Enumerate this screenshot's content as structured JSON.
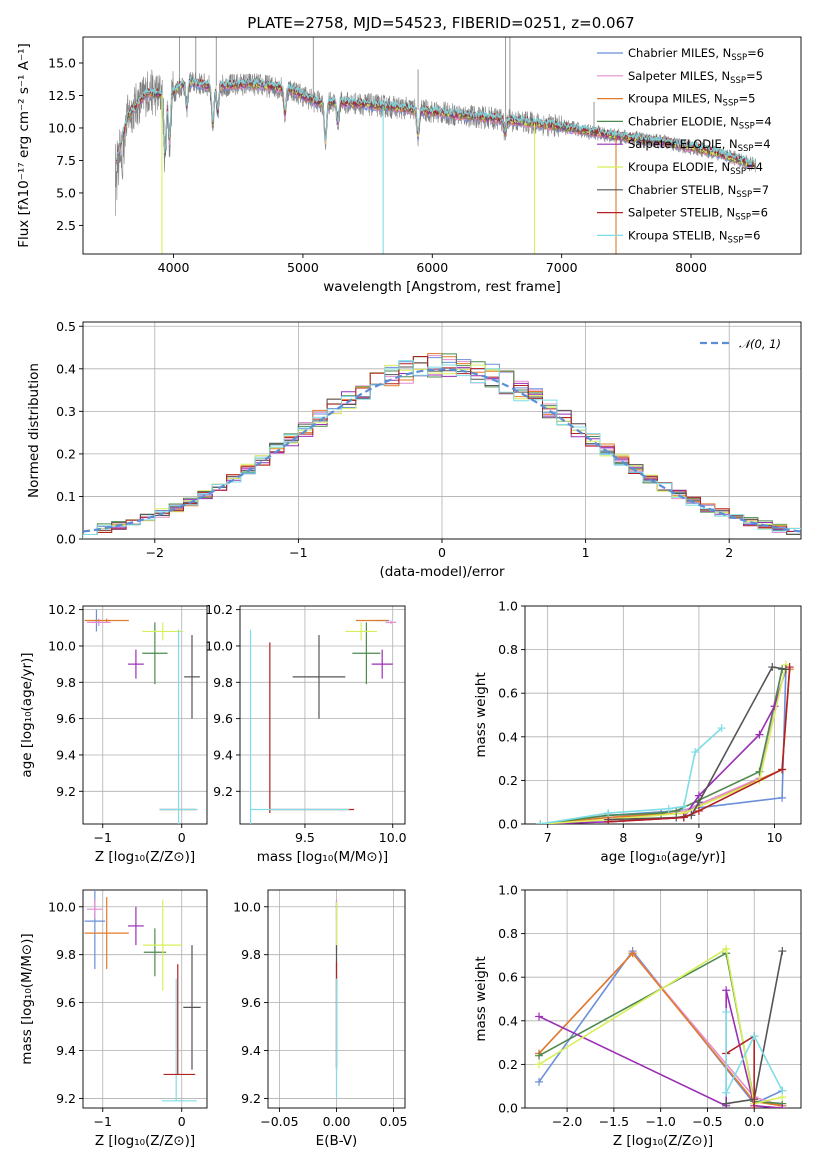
{
  "title": "PLATE=2758, MJD=54523, FIBERID=0251, z=0.067",
  "colors": {
    "Chabrier MILES": "#6b8fd9",
    "Salpeter MILES": "#e38fd1",
    "Kroupa MILES": "#e07b2a",
    "Chabrier ELODIE": "#4e8a4e",
    "Salpeter ELODIE": "#9b2fb5",
    "Kroupa ELODIE": "#d7ef5a",
    "Chabrier STELIB": "#555555",
    "Salpeter STELIB": "#b22222",
    "Kroupa STELIB": "#7fdde6",
    "data": "#808080",
    "normal": "#5a8fd8"
  },
  "chart_data": [
    {
      "id": "spectrum",
      "type": "line",
      "xlabel": "wavelength [Angstrom, rest frame]",
      "ylabel": "Flux [fλ10⁻¹⁷ erg cm⁻² s⁻¹ A⁻¹]",
      "xlim": [
        3300,
        8850
      ],
      "ylim": [
        0.3,
        17.0
      ],
      "xticks": [
        4000,
        5000,
        6000,
        7000,
        8000
      ],
      "yticks": [
        2.5,
        5.0,
        7.5,
        10.0,
        12.5,
        15.0
      ],
      "ytick_labels": [
        "2.5",
        "5.0",
        "7.5",
        "10.0",
        "12.5",
        "15.0"
      ],
      "legend_position": "top-right",
      "legend": [
        {
          "model": "Chabrier MILES",
          "nssp": "6"
        },
        {
          "model": "Salpeter MILES",
          "nssp": "5"
        },
        {
          "model": "Kroupa MILES",
          "nssp": "5"
        },
        {
          "model": "Chabrier ELODIE",
          "nssp": "4"
        },
        {
          "model": "Salpeter ELODIE",
          "nssp": "4"
        },
        {
          "model": "Kroupa ELODIE",
          "nssp": "4"
        },
        {
          "model": "Chabrier STELIB",
          "nssp": "7"
        },
        {
          "model": "Salpeter STELIB",
          "nssp": "6"
        },
        {
          "model": "Kroupa STELIB",
          "nssp": "6"
        }
      ],
      "continuum": {
        "x": [
          3550,
          3650,
          3800,
          3950,
          4100,
          4300,
          4600,
          4900,
          5100,
          5400,
          5800,
          6200,
          6600,
          7000,
          7400,
          7800,
          8200,
          8500
        ],
        "y": [
          7.2,
          11.0,
          12.8,
          12.4,
          13.6,
          13.2,
          13.4,
          13.0,
          12.0,
          11.9,
          11.5,
          11.0,
          10.6,
          10.1,
          9.4,
          8.9,
          8.1,
          7.1
        ]
      },
      "absorption_lines": [
        {
          "x": 3934,
          "depth": 4.5
        },
        {
          "x": 3969,
          "depth": 3.5
        },
        {
          "x": 4102,
          "depth": 2.0
        },
        {
          "x": 4304,
          "depth": 3.0
        },
        {
          "x": 4341,
          "depth": 2.0
        },
        {
          "x": 4861,
          "depth": 2.0
        },
        {
          "x": 5175,
          "depth": 3.0
        },
        {
          "x": 5270,
          "depth": 1.5
        },
        {
          "x": 5890,
          "depth": 2.0
        },
        {
          "x": 6563,
          "depth": 1.0
        },
        {
          "x": 8542,
          "depth": 1.5
        }
      ],
      "model_dropouts": [
        {
          "x": 3910,
          "series": "Kroupa ELODIE"
        },
        {
          "x": 5620,
          "series": "Kroupa STELIB"
        },
        {
          "x": 6790,
          "series": "Kroupa ELODIE"
        },
        {
          "x": 7420,
          "series": "Kroupa MILES"
        }
      ],
      "data_spikes": [
        {
          "x": 4045,
          "y": 17.0
        },
        {
          "x": 4172,
          "y": 17.0
        },
        {
          "x": 4330,
          "y": 17.0
        },
        {
          "x": 5080,
          "y": 17.0
        },
        {
          "x": 5890,
          "y": 14.5
        },
        {
          "x": 6567,
          "y": 17.0
        },
        {
          "x": 6600,
          "y": 17.0
        },
        {
          "x": 7250,
          "y": 12.0
        }
      ]
    },
    {
      "id": "residuals",
      "type": "histogram",
      "xlabel": "(data-model)/error",
      "ylabel": "Normed distribution",
      "xlim": [
        -2.5,
        2.5
      ],
      "ylim": [
        0,
        0.51
      ],
      "xticks": [
        -2,
        -1,
        0,
        1,
        2
      ],
      "xtick_labels": [
        "−2",
        "−1",
        "0",
        "1",
        "2"
      ],
      "yticks": [
        0.0,
        0.1,
        0.2,
        0.3,
        0.4,
        0.5
      ],
      "ytick_labels": [
        "0.0",
        "0.1",
        "0.2",
        "0.3",
        "0.4",
        "0.5"
      ],
      "bins": 50,
      "legend_position": "top-right",
      "legend_label": "𝒩(0, 1)"
    },
    {
      "id": "age-vs-Z",
      "type": "scatter-errorbar",
      "xlabel": "Z [log₁₀(Z/Z⊙)]",
      "ylabel": "age  [log₁₀(age/yr)]",
      "xlim": [
        -1.25,
        0.32
      ],
      "ylim": [
        9.02,
        10.22
      ],
      "xticks": [
        -1,
        0
      ],
      "xtick_labels": [
        "−1",
        "0"
      ],
      "yticks": [
        9.2,
        9.4,
        9.6,
        9.8,
        10.0,
        10.2
      ],
      "ytick_labels": [
        "9.2",
        "9.4",
        "9.6",
        "9.8",
        "10.0",
        "10.2"
      ],
      "points": [
        {
          "series": "Chabrier MILES",
          "x": -1.08,
          "y": 10.14,
          "xerr": 0.05,
          "yerr": 0.06
        },
        {
          "series": "Salpeter MILES",
          "x": -1.05,
          "y": 10.13,
          "xerr": 0.15,
          "yerr": 0.02
        },
        {
          "series": "Kroupa MILES",
          "x": -0.95,
          "y": 10.14,
          "xerr": 0.28,
          "yerr": 0.01
        },
        {
          "series": "Chabrier ELODIE",
          "x": -0.34,
          "y": 9.96,
          "xerr": 0.16,
          "yerr": 0.17
        },
        {
          "series": "Salpeter ELODIE",
          "x": -0.58,
          "y": 9.9,
          "xerr": 0.1,
          "yerr": 0.08
        },
        {
          "series": "Kroupa ELODIE",
          "x": -0.24,
          "y": 10.08,
          "xerr": 0.26,
          "yerr": 0.05
        },
        {
          "series": "Chabrier STELIB",
          "x": 0.13,
          "y": 9.83,
          "xerr": 0.1,
          "yerr": 0.23
        },
        {
          "series": "Salpeter STELIB",
          "x": -0.05,
          "y": 9.1,
          "xerr": 0.23,
          "yerr": 0.0
        },
        {
          "series": "Kroupa STELIB",
          "x": -0.04,
          "y": 9.1,
          "xerr": 0.24,
          "yerr": 0.99
        }
      ]
    },
    {
      "id": "age-vs-mass",
      "type": "scatter-errorbar",
      "xlabel": "mass [log₁₀(M/M⊙)]",
      "ylabel": "",
      "xlim": [
        9.13,
        10.07
      ],
      "ylim": [
        9.02,
        10.22
      ],
      "xticks": [
        9.5,
        10.0
      ],
      "xtick_labels": [
        "9.5",
        "10.0"
      ],
      "yticks": [
        9.2,
        9.4,
        9.6,
        9.8,
        10.0,
        10.2
      ],
      "ytick_labels": [
        "9.2",
        "9.4",
        "9.6",
        "9.8",
        "10.0",
        "10.2"
      ],
      "points": [
        {
          "series": "Chabrier MILES",
          "x": 9.94,
          "y": 10.14,
          "xerr": 0.04,
          "yerr": 0.0
        },
        {
          "series": "Salpeter MILES",
          "x": 9.99,
          "y": 10.13,
          "xerr": 0.03,
          "yerr": 0.01
        },
        {
          "series": "Kroupa MILES",
          "x": 9.88,
          "y": 10.14,
          "xerr": 0.09,
          "yerr": 0.0
        },
        {
          "series": "Chabrier ELODIE",
          "x": 9.85,
          "y": 9.96,
          "xerr": 0.08,
          "yerr": 0.17
        },
        {
          "series": "Salpeter ELODIE",
          "x": 9.94,
          "y": 9.9,
          "xerr": 0.06,
          "yerr": 0.08
        },
        {
          "series": "Kroupa ELODIE",
          "x": 9.82,
          "y": 10.08,
          "xerr": 0.09,
          "yerr": 0.05
        },
        {
          "series": "Chabrier STELIB",
          "x": 9.58,
          "y": 9.83,
          "xerr": 0.15,
          "yerr": 0.23
        },
        {
          "series": "Salpeter STELIB",
          "x": 9.3,
          "y": 9.1,
          "xerr": 0.0,
          "yerr": 0.0
        },
        {
          "series": "Kroupa STELIB",
          "x": 9.19,
          "y": 9.1,
          "xerr": 0.0,
          "yerr": 0.99
        }
      ],
      "extra_segments": [
        {
          "series": "Salpeter STELIB",
          "x1": 9.3,
          "y1": 9.08,
          "x2": 9.3,
          "y2": 10.02
        },
        {
          "series": "Salpeter STELIB",
          "x1": 9.3,
          "y1": 9.1,
          "x2": 9.78,
          "y2": 9.1
        },
        {
          "series": "Kroupa STELIB",
          "x1": 9.19,
          "y1": 9.1,
          "x2": 9.75,
          "y2": 9.1
        }
      ]
    },
    {
      "id": "mass-weight-vs-age",
      "type": "line",
      "xlabel": "age  [log₁₀(age/yr)]",
      "ylabel": "mass weight",
      "xlim": [
        6.7,
        10.35
      ],
      "ylim": [
        0,
        1.0
      ],
      "xticks": [
        7,
        8,
        9,
        10
      ],
      "xtick_labels": [
        "7",
        "8",
        "9",
        "10"
      ],
      "yticks": [
        0.0,
        0.2,
        0.4,
        0.6,
        0.8,
        1.0
      ],
      "ytick_labels": [
        "0.0",
        "0.2",
        "0.4",
        "0.6",
        "0.8",
        "1.0"
      ],
      "series": [
        {
          "name": "Chabrier MILES",
          "x": [
            6.9,
            7.8,
            8.7,
            8.9,
            10.1,
            10.15
          ],
          "y": [
            0.0,
            0.04,
            0.06,
            0.07,
            0.12,
            0.71
          ]
        },
        {
          "name": "Salpeter MILES",
          "x": [
            6.9,
            7.8,
            8.8,
            9.8,
            10.1
          ],
          "y": [
            0.0,
            0.03,
            0.06,
            0.21,
            0.71
          ]
        },
        {
          "name": "Kroupa MILES",
          "x": [
            6.9,
            7.8,
            8.8,
            10.1,
            10.2
          ],
          "y": [
            0.0,
            0.03,
            0.05,
            0.25,
            0.71
          ]
        },
        {
          "name": "Chabrier ELODIE",
          "x": [
            6.9,
            7.8,
            8.5,
            8.7,
            9.8,
            10.1
          ],
          "y": [
            0.0,
            0.04,
            0.05,
            0.06,
            0.24,
            0.71
          ]
        },
        {
          "name": "Salpeter ELODIE",
          "x": [
            6.9,
            7.8,
            8.8,
            9.0,
            9.8,
            10.0,
            10.15
          ],
          "y": [
            0.0,
            0.01,
            0.03,
            0.13,
            0.41,
            0.54,
            0.71
          ]
        },
        {
          "name": "Kroupa ELODIE",
          "x": [
            6.9,
            7.8,
            8.8,
            9.8,
            10.15
          ],
          "y": [
            0.0,
            0.02,
            0.05,
            0.2,
            0.73
          ]
        },
        {
          "name": "Chabrier STELIB",
          "x": [
            7.8,
            8.7,
            8.9,
            9.0,
            9.97,
            10.15
          ],
          "y": [
            0.02,
            0.03,
            0.04,
            0.1,
            0.72,
            0.71
          ]
        },
        {
          "name": "Salpeter STELIB",
          "x": [
            7.8,
            8.8,
            9.0,
            10.1,
            10.2
          ],
          "y": [
            0.01,
            0.03,
            0.06,
            0.25,
            0.72
          ]
        },
        {
          "name": "Kroupa STELIB",
          "x": [
            6.9,
            7.8,
            8.6,
            8.8,
            8.95,
            9.3
          ],
          "y": [
            0.0,
            0.05,
            0.07,
            0.08,
            0.33,
            0.44
          ]
        }
      ]
    },
    {
      "id": "mass-vs-Z",
      "type": "scatter-errorbar",
      "xlabel": "Z [log₁₀(Z/Z⊙)]",
      "ylabel": "mass [log₁₀(M/M⊙)]",
      "xlim": [
        -1.25,
        0.32
      ],
      "ylim": [
        9.16,
        10.07
      ],
      "xticks": [
        -1,
        0
      ],
      "xtick_labels": [
        "−1",
        "0"
      ],
      "yticks": [
        9.2,
        9.4,
        9.6,
        9.8,
        10.0
      ],
      "ytick_labels": [
        "9.2",
        "9.4",
        "9.6",
        "9.8",
        "10.0"
      ],
      "points": [
        {
          "series": "Chabrier MILES",
          "x": -1.1,
          "y": 9.94,
          "xerr": 0.13,
          "yerr": 0.2
        },
        {
          "series": "Salpeter MILES",
          "x": -1.1,
          "y": 9.99,
          "xerr": 0.1,
          "yerr": 0.04
        },
        {
          "series": "Kroupa MILES",
          "x": -0.95,
          "y": 9.89,
          "xerr": 0.28,
          "yerr": 0.15
        },
        {
          "series": "Chabrier ELODIE",
          "x": -0.34,
          "y": 9.81,
          "xerr": 0.14,
          "yerr": 0.1
        },
        {
          "series": "Salpeter ELODIE",
          "x": -0.58,
          "y": 9.92,
          "xerr": 0.1,
          "yerr": 0.08
        },
        {
          "series": "Kroupa ELODIE",
          "x": -0.24,
          "y": 9.84,
          "xerr": 0.25,
          "yerr": 0.19
        },
        {
          "series": "Chabrier STELIB",
          "x": 0.13,
          "y": 9.58,
          "xerr": 0.11,
          "yerr": 0.26
        },
        {
          "series": "Salpeter STELIB",
          "x": -0.03,
          "y": 9.3,
          "xerr": 0.2,
          "yerr": 0.0
        },
        {
          "series": "Kroupa STELIB",
          "x": -0.03,
          "y": 9.19,
          "xerr": 0.22,
          "yerr": 0.0
        }
      ],
      "extra_segments": [
        {
          "series": "Salpeter STELIB",
          "x1": -0.05,
          "y1": 9.3,
          "x2": -0.05,
          "y2": 9.76
        },
        {
          "series": "Kroupa STELIB",
          "x1": -0.07,
          "y1": 9.19,
          "x2": -0.07,
          "y2": 9.7
        }
      ]
    },
    {
      "id": "mass-vs-ebv",
      "type": "scatter-errorbar",
      "xlabel": "E(B-V)",
      "ylabel": "",
      "xlim": [
        -0.06,
        0.06
      ],
      "ylim": [
        9.16,
        10.07
      ],
      "xticks": [
        -0.05,
        0.0,
        0.05
      ],
      "xtick_labels": [
        "−0.05",
        "0.00",
        "0.05"
      ],
      "yticks": [
        9.2,
        9.4,
        9.6,
        9.8,
        10.0
      ],
      "ytick_labels": [
        "9.2",
        "9.4",
        "9.6",
        "9.8",
        "10.0"
      ],
      "points": [
        {
          "series": "Salpeter MILES",
          "x": 0.0,
          "y": 9.99,
          "xerr": 0.0,
          "yerr": 0.04
        },
        {
          "series": "Salpeter ELODIE",
          "x": 0.0,
          "y": 9.92,
          "xerr": 0.0,
          "yerr": 0.1
        },
        {
          "series": "Kroupa ELODIE",
          "x": 0.0,
          "y": 9.84,
          "xerr": 0.0,
          "yerr": 0.18
        },
        {
          "series": "Chabrier STELIB",
          "x": 0.0,
          "y": 9.58,
          "xerr": 0.0,
          "yerr": 0.26
        },
        {
          "series": "Salpeter STELIB",
          "x": 0.0,
          "y": 9.55,
          "xerr": 0.0,
          "yerr": 0.22
        },
        {
          "series": "Kroupa STELIB",
          "x": 0.0,
          "y": 9.45,
          "xerr": 0.0,
          "yerr": 0.25
        }
      ]
    },
    {
      "id": "mass-weight-vs-Z",
      "type": "line",
      "xlabel": "Z [log₁₀(Z/Z⊙)]",
      "ylabel": "mass weight",
      "xlim": [
        -2.45,
        0.5
      ],
      "ylim": [
        0,
        1.0
      ],
      "xticks": [
        -2.0,
        -1.5,
        -1.0,
        -0.5,
        0.0
      ],
      "xtick_labels": [
        "−2.0",
        "−1.5",
        "−1.0",
        "−0.5",
        "0.0"
      ],
      "yticks": [
        0.0,
        0.2,
        0.4,
        0.6,
        0.8,
        1.0
      ],
      "ytick_labels": [
        "0.0",
        "0.2",
        "0.4",
        "0.6",
        "0.8",
        "1.0"
      ],
      "series": [
        {
          "name": "Chabrier MILES",
          "x": [
            -2.3,
            -1.3,
            0.0,
            0.3
          ],
          "y": [
            0.12,
            0.72,
            0.02,
            0.08
          ]
        },
        {
          "name": "Salpeter MILES",
          "x": [
            -2.3,
            -1.3,
            0.0,
            0.3
          ],
          "y": [
            0.25,
            0.71,
            0.05,
            0.01
          ]
        },
        {
          "name": "Kroupa MILES",
          "x": [
            -2.3,
            -1.3,
            0.0,
            0.3
          ],
          "y": [
            0.25,
            0.71,
            0.03,
            0.01
          ]
        },
        {
          "name": "Chabrier ELODIE",
          "x": [
            -2.3,
            -0.3,
            0.0,
            0.3
          ],
          "y": [
            0.24,
            0.71,
            0.03,
            0.02
          ]
        },
        {
          "name": "Salpeter ELODIE",
          "x": [
            -2.3,
            -0.3,
            -0.3,
            0.0,
            0.3
          ],
          "y": [
            0.42,
            0.01,
            0.54,
            0.01,
            0.0
          ]
        },
        {
          "name": "Kroupa ELODIE",
          "x": [
            -2.3,
            -0.3,
            0.0,
            0.3
          ],
          "y": [
            0.2,
            0.73,
            0.02,
            0.05
          ]
        },
        {
          "name": "Chabrier STELIB",
          "x": [
            -0.3,
            0.0,
            0.3
          ],
          "y": [
            0.02,
            0.04,
            0.72
          ]
        },
        {
          "name": "Salpeter STELIB",
          "x": [
            -0.3,
            0.0,
            0.0
          ],
          "y": [
            0.25,
            0.33,
            0.0
          ]
        },
        {
          "name": "Kroupa STELIB",
          "x": [
            -0.3,
            -0.3,
            0.0,
            0.3
          ],
          "y": [
            0.44,
            0.07,
            0.33,
            0.08
          ]
        }
      ]
    }
  ]
}
